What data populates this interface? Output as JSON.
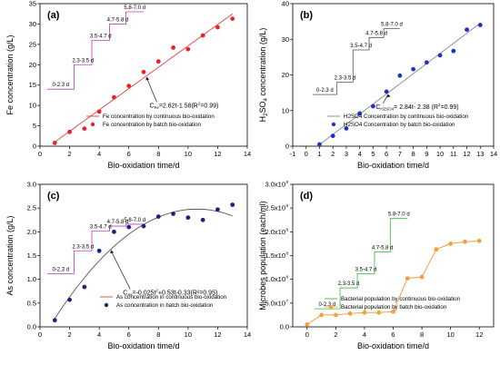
{
  "chart_data": [
    {
      "panel_label": "(a)",
      "type": "scatter",
      "xlabel": "Bio-oxidation time/d",
      "ylabel": "Fe concentration (g/L)",
      "xlim": [
        0,
        14
      ],
      "ylim": [
        0,
        35
      ],
      "xticks": [
        0,
        2,
        4,
        6,
        8,
        10,
        12,
        14
      ],
      "yticks": [
        0,
        5,
        10,
        15,
        20,
        25,
        30,
        35
      ],
      "stage_color": "#b83cb8",
      "fit_color": "#d9453e",
      "series": [
        {
          "name": "Fe concentration by batch bio-oxidation",
          "style": "dots",
          "color": "#e8242a",
          "x": [
            1,
            2,
            3,
            4,
            5,
            6,
            7,
            8,
            9,
            10,
            11,
            12,
            13
          ],
          "y": [
            0.8,
            3.5,
            4.3,
            8.5,
            12,
            14.8,
            18.2,
            20.8,
            24.2,
            23.8,
            27.2,
            29.2,
            31.3
          ]
        },
        {
          "name": "Fe concentration by continuous bio-oxidation",
          "style": "line",
          "color": "#d9453e",
          "x": [],
          "y": []
        }
      ],
      "fit": {
        "label": "C",
        "sub": "Fe",
        "rest": "=2.62t-1.58(R",
        "sup": "2",
        "end": "=0.99)",
        "a": 2.62,
        "b": -1.58,
        "x_range": [
          1,
          13
        ]
      },
      "stages": [
        {
          "label": "0-2.3 d",
          "x": 2.3,
          "y": 14
        },
        {
          "label": "2.3-3.5 d",
          "x": 3.5,
          "y": 20
        },
        {
          "label": "3.5-4.7 d",
          "x": 4.7,
          "y": 26
        },
        {
          "label": "4.7-5.8 d",
          "x": 5.8,
          "y": 30
        },
        {
          "label": "5.8-7.0 d",
          "x": 7.0,
          "y": 33
        }
      ]
    },
    {
      "panel_label": "(b)",
      "type": "scatter",
      "xlabel": "Bio-oxidation time/d",
      "ylabel": "H2SO4 concentration (g/L)",
      "xlim": [
        -1,
        14
      ],
      "ylim": [
        0,
        40
      ],
      "xticks": [
        -1,
        0,
        1,
        2,
        3,
        4,
        5,
        6,
        7,
        8,
        9,
        10,
        11,
        12,
        13,
        14
      ],
      "yticks": [
        0,
        10,
        20,
        30,
        40
      ],
      "stage_color": "#555555",
      "fit_color": "#888888",
      "series": [
        {
          "name": "H2SO4 Concentration by batch bio-oxidation",
          "style": "dots",
          "color": "#2030c8",
          "x": [
            1,
            2,
            3,
            4,
            5,
            6,
            7,
            8,
            9,
            10,
            11,
            12,
            13
          ],
          "y": [
            0.5,
            2.9,
            5,
            9.2,
            11.2,
            15.3,
            19.8,
            21.6,
            23.5,
            25.5,
            26.7,
            32.7,
            34
          ]
        },
        {
          "name": "H2SO4 Concentration by continuous bio-oxidation",
          "style": "line",
          "color": "#888888",
          "x": [],
          "y": []
        }
      ],
      "fit": {
        "label": "C",
        "sub": "H2SO4",
        "rest": "= 2.84t- 2.38 (R",
        "sup": "2",
        "end": "=0.99)",
        "a": 2.84,
        "b": -2.38,
        "x_range": [
          1,
          13
        ]
      },
      "stages": [
        {
          "label": "0-2.3 d",
          "x": 2.3,
          "y": 14.5
        },
        {
          "label": "2.3-3.5 d",
          "x": 3.5,
          "y": 18
        },
        {
          "label": "3.5-4.7 d",
          "x": 4.7,
          "y": 27
        },
        {
          "label": "4.7-5.8 d",
          "x": 5.8,
          "y": 30.5
        },
        {
          "label": "5.8-7.0 d",
          "x": 7.0,
          "y": 33
        }
      ]
    },
    {
      "panel_label": "(c)",
      "type": "scatter",
      "xlabel": "Bio-oxidation time/d",
      "ylabel": "As concentration (g/L)",
      "xlim": [
        0,
        14
      ],
      "ylim": [
        0,
        3.0
      ],
      "xticks": [
        0,
        2,
        4,
        6,
        8,
        10,
        12,
        14
      ],
      "yticks": [
        0.0,
        0.5,
        1.0,
        1.5,
        2.0,
        2.5,
        3.0
      ],
      "stage_color": "#b83cb8",
      "fit_color": "#555555",
      "series": [
        {
          "name": "As concentration in batch bio-oxidation",
          "style": "dots",
          "color": "#1a237e",
          "x": [
            1,
            2,
            3,
            4,
            5,
            6,
            7,
            8,
            9,
            10,
            11,
            12,
            13
          ],
          "y": [
            0.14,
            0.57,
            0.84,
            1.6,
            2.0,
            2.1,
            2.12,
            2.32,
            2.38,
            2.3,
            2.25,
            2.47,
            2.57
          ]
        },
        {
          "name": "As concentration in continuous bio-oxidation",
          "style": "line",
          "color": "#d9453e",
          "x": [],
          "y": []
        }
      ],
      "fit": {
        "label": "C",
        "sub": "As",
        "rest": "=-0.025t",
        "sup": "2",
        "end": "+0.53t-0.33(R²=0.95)",
        "a2": -0.025,
        "a": 0.53,
        "b": -0.33,
        "x_range": [
          1,
          13
        ]
      },
      "stages": [
        {
          "label": "0-2.3 d",
          "x": 2.3,
          "y": 1.12
        },
        {
          "label": "2.3-3.5 d",
          "x": 3.5,
          "y": 1.6
        },
        {
          "label": "3.5-4.7 d",
          "x": 4.7,
          "y": 2.02
        },
        {
          "label": "4.7-5.8 d",
          "x": 5.8,
          "y": 2.12
        },
        {
          "label": "5.8-7.0 d",
          "x": 7.0,
          "y": 2.16
        }
      ]
    },
    {
      "panel_label": "(d)",
      "type": "line",
      "xlabel": "Bio-oxidation time/d",
      "ylabel": "Microbes population (each/ml)",
      "xlim": [
        -1,
        13
      ],
      "ylim": [
        0,
        3.0
      ],
      "ytick_exponent": "8",
      "xticks": [
        0,
        2,
        4,
        6,
        8,
        10,
        12
      ],
      "yticks": [
        0.0,
        0.5,
        1.0,
        1.5,
        2.0,
        2.5,
        3.0
      ],
      "ytick_labels": [
        "0.0",
        "5.0x10",
        "1.0x10",
        "1.5x10",
        "2.0x10",
        "2.5x10",
        "3.0x10"
      ],
      "ytick_sups": [
        "",
        "7",
        "8",
        "8",
        "8",
        "8",
        "8"
      ],
      "stage_color": "#3cb43c",
      "fit_color": "#f5a040",
      "series": [
        {
          "name": "Bacterial population by batch bio-oxidation",
          "style": "dotline",
          "color": "#f5a040",
          "x": [
            0,
            1,
            2,
            3,
            4,
            5,
            6,
            7,
            8,
            9,
            10,
            11,
            12
          ],
          "y": [
            0.05,
            0.25,
            0.25,
            0.28,
            0.3,
            0.3,
            0.32,
            1.02,
            1.05,
            1.63,
            1.75,
            1.79,
            1.81
          ]
        },
        {
          "name": "Bacterial population by continuous bio-oxidation",
          "style": "line",
          "color": "#3cb43c",
          "x": [],
          "y": []
        }
      ],
      "stages": [
        {
          "label": "0-2.3 d",
          "x": 2.3,
          "y": 0.38
        },
        {
          "label": "2.3-3.5 d",
          "x": 3.5,
          "y": 0.82
        },
        {
          "label": "3.5-4.7 d",
          "x": 4.7,
          "y": 1.12
        },
        {
          "label": "4.7-5.8 d",
          "x": 5.8,
          "y": 1.58
        },
        {
          "label": "5.8-7.0 d",
          "x": 7.0,
          "y": 2.28
        }
      ]
    }
  ]
}
